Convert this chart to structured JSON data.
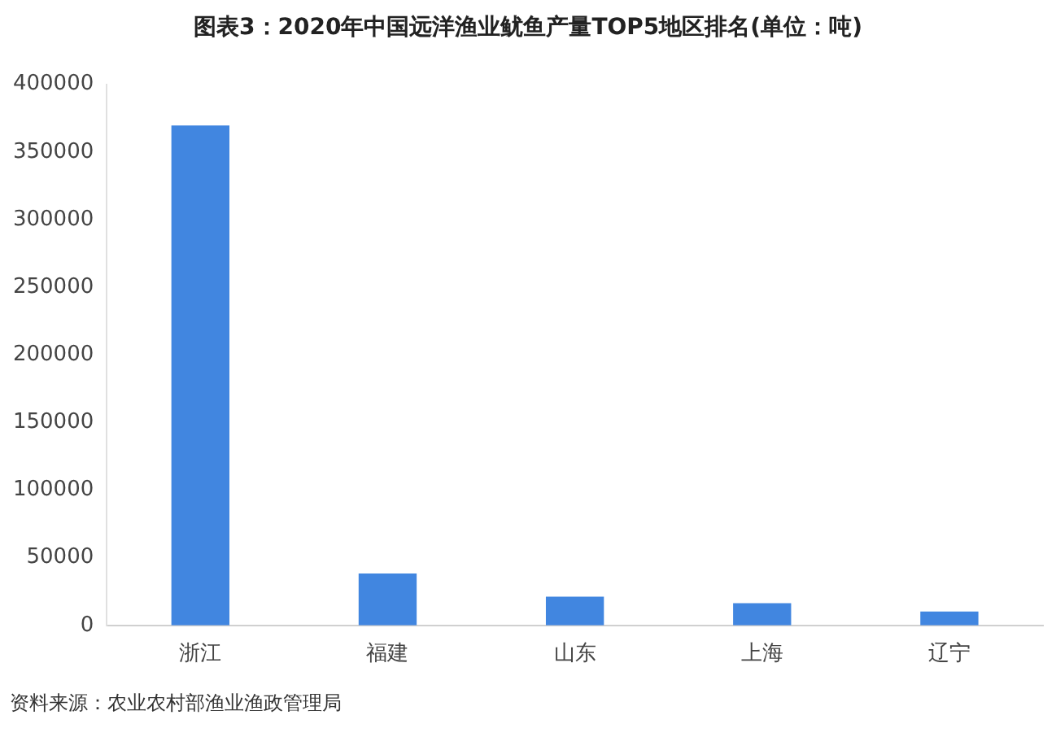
{
  "chart_data": {
    "type": "bar",
    "title": "图表3：2020年中国远洋渔业鱿鱼产量TOP5地区排名(单位：吨)",
    "categories": [
      "浙江",
      "福建",
      "山东",
      "上海",
      "辽宁"
    ],
    "values": [
      369500,
      38400,
      21300,
      16400,
      10300
    ],
    "color": "#4186e0",
    "ylim": [
      0,
      400000
    ],
    "yticks": [
      0,
      50000,
      100000,
      150000,
      200000,
      250000,
      300000,
      350000,
      400000
    ],
    "grid": false,
    "annotations": [
      "资料来源：农业农村部渔业渔政管理局"
    ]
  }
}
